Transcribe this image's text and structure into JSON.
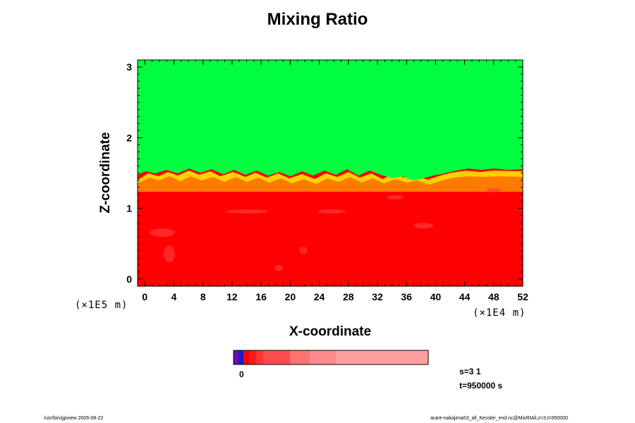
{
  "chart_data": {
    "type": "heatmap",
    "title": "Mixing Ratio",
    "xlabel": "X-coordinate",
    "ylabel": "Z-coordinate",
    "x_scale_label": "(×1E4 m)",
    "y_scale_label": "(×1E5 m)",
    "x_ticks": [
      "0",
      "4",
      "8",
      "12",
      "16",
      "20",
      "24",
      "28",
      "32",
      "36",
      "40",
      "44",
      "48",
      "52"
    ],
    "y_ticks": [
      "0",
      "1",
      "2",
      "3"
    ],
    "xlim": [
      -1,
      52
    ],
    "ylim": [
      -0.1,
      3.1
    ],
    "regions": [
      {
        "name": "upper",
        "color": "#00ff40",
        "z_range": [
          1.48,
          3.1
        ]
      },
      {
        "name": "lower",
        "color": "#ff0000",
        "z_range": [
          -0.1,
          1.4
        ]
      }
    ],
    "colorbar": {
      "zero_label": "0",
      "colors": [
        "#6a0db8",
        "#1a1acc",
        "#ff0000",
        "#ff1a1a",
        "#ff3333",
        "#ff4d4d",
        "#ff7373",
        "#ff8c8c",
        "#ffa0a0"
      ]
    },
    "notes": [
      "s=3 1",
      "t=950000 s"
    ]
  },
  "footer": {
    "left": "/usr/bin/gpview 2005-08-22",
    "right": "arare-nakajima03_all_Kessler_end.nc@MixRtAll,z=3,t=950000"
  }
}
